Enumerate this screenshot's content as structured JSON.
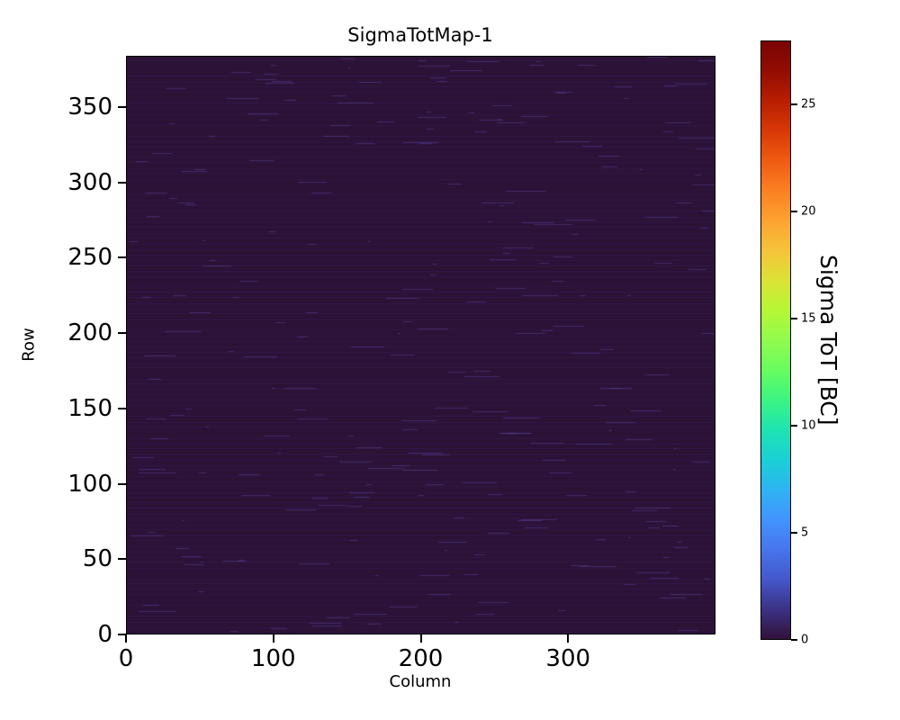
{
  "chart_data": {
    "type": "heatmap",
    "title": "SigmaTotMap-1",
    "xlabel": "Column",
    "ylabel": "Row",
    "xlim": [
      0,
      400
    ],
    "ylim": [
      0,
      384
    ],
    "x_ticks": [
      0,
      100,
      200,
      300
    ],
    "y_ticks": [
      0,
      50,
      100,
      150,
      200,
      250,
      300,
      350
    ],
    "grid": false,
    "legend": "none",
    "colorbar": {
      "label": "Sigma ToT [BC]",
      "ticks": [
        0,
        5,
        10,
        15,
        20,
        25
      ],
      "zlim": [
        0,
        28
      ],
      "colormap": "turbo",
      "colormap_stops": [
        "#30123b",
        "#3c3285",
        "#4458cb",
        "#4675ed",
        "#4294ff",
        "#2eb4f2",
        "#1ad0d5",
        "#1ee4b2",
        "#3bf482",
        "#68fd5f",
        "#90fb4d",
        "#b6f735",
        "#dbe236",
        "#f6c33a",
        "#fda331",
        "#fb8022",
        "#f05b12",
        "#d93806",
        "#b81e02",
        "#930c01",
        "#7a0403"
      ]
    },
    "values_summary": {
      "grid_columns": 400,
      "grid_rows": 384,
      "dominant_value_bc": 0.5,
      "streak_value_bc": 2,
      "description": "Nearly uniform pixel map: almost all pixels at ~0-0.5 BC (dark purple, low end of turbo colormap) with faint, slightly brighter horizontal streaks scattered across rows"
    },
    "colors": {
      "base": "#2c1237",
      "streak_faint": "rgba(72,52,128,0.20)",
      "streak_bright": "rgba(96,74,168,0.45)",
      "tick_color": "#000000"
    }
  }
}
